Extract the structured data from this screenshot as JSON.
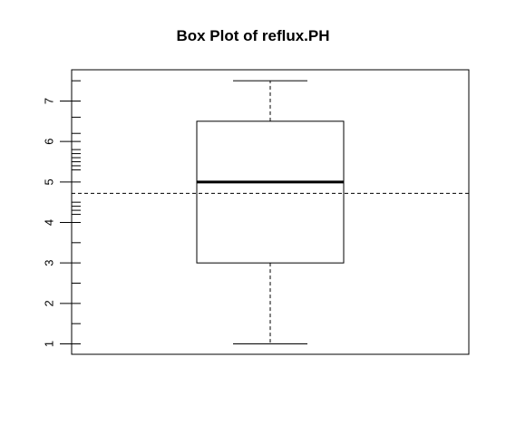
{
  "chart_data": {
    "type": "boxplot",
    "title": "Box Plot of reflux.PH",
    "xlabel": "",
    "ylabel": "",
    "ylim": [
      0.75,
      7.8
    ],
    "y_ticks": [
      1,
      2,
      3,
      4,
      5,
      6,
      7
    ],
    "y_tick_labels": [
      "1",
      "2",
      "3",
      "4",
      "5",
      "6",
      "7"
    ],
    "box": {
      "min": 1,
      "q1": 3,
      "median": 5,
      "q3": 6.5,
      "max": 7.5
    },
    "reference_line": {
      "y": 4.72,
      "style": "dashed"
    },
    "rug_values": [
      1.5,
      2.5,
      3.5,
      4.2,
      4.3,
      4.4,
      4.5,
      5.3,
      5.4,
      5.5,
      5.6,
      5.7,
      5.8,
      6.2,
      6.6,
      7.5
    ],
    "colors": {
      "stroke": "#000000",
      "background": "#ffffff"
    }
  }
}
